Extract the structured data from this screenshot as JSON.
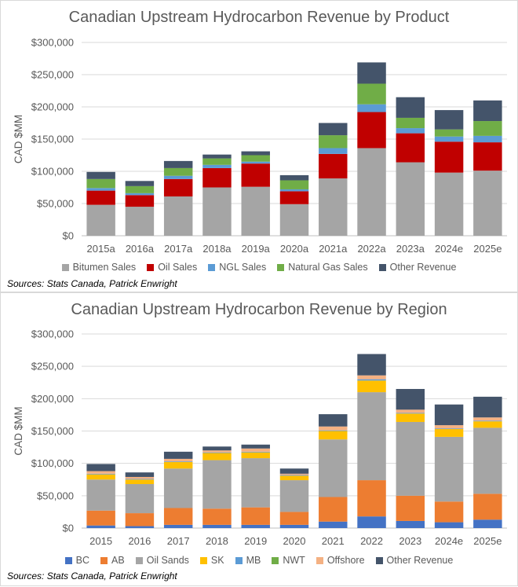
{
  "chart_data": [
    {
      "type": "bar",
      "stacked": true,
      "title": "Canadian Upstream Hydrocarbon Revenue by Product",
      "ylabel": "CAD $MM",
      "xlabel": "",
      "ylim": [
        0,
        300000
      ],
      "yticks": [
        "$0",
        "$50,000",
        "$100,000",
        "$150,000",
        "$200,000",
        "$250,000",
        "$300,000"
      ],
      "ytick_values": [
        0,
        50000,
        100000,
        150000,
        200000,
        250000,
        300000
      ],
      "categories": [
        "2015a",
        "2016a",
        "2017a",
        "2018a",
        "2019a",
        "2020a",
        "2021a",
        "2022a",
        "2023a",
        "2024e",
        "2025e"
      ],
      "series": [
        {
          "name": "Bitumen Sales",
          "color": "#a5a5a5",
          "values": [
            48000,
            45000,
            61000,
            75000,
            76000,
            49000,
            89000,
            136000,
            114000,
            98000,
            101000
          ]
        },
        {
          "name": "Oil Sales",
          "color": "#c00000",
          "values": [
            22000,
            18000,
            27000,
            30000,
            36000,
            20000,
            38000,
            56000,
            45000,
            48000,
            44000
          ]
        },
        {
          "name": "NGL Sales",
          "color": "#5b9bd5",
          "values": [
            4000,
            3000,
            5000,
            5000,
            3000,
            3000,
            9000,
            12000,
            8000,
            8000,
            10000
          ]
        },
        {
          "name": "Natural Gas Sales",
          "color": "#70ad47",
          "values": [
            14000,
            11000,
            12000,
            10000,
            10000,
            14000,
            20000,
            32000,
            16000,
            11000,
            23000
          ]
        },
        {
          "name": "Other Revenue",
          "color": "#44546a",
          "values": [
            11000,
            8000,
            11000,
            6000,
            6000,
            8000,
            19000,
            33000,
            32000,
            30000,
            32000
          ]
        }
      ],
      "source": "Sources: Stats Canada, Patrick Enwright"
    },
    {
      "type": "bar",
      "stacked": true,
      "title": "Canadian Upstream Hydrocarbon Revenue by Region",
      "ylabel": "CAD $MM",
      "xlabel": "",
      "ylim": [
        0,
        300000
      ],
      "yticks": [
        "$0",
        "$50,000",
        "$100,000",
        "$150,000",
        "$200,000",
        "$250,000",
        "$300,000"
      ],
      "ytick_values": [
        0,
        50000,
        100000,
        150000,
        200000,
        250000,
        300000
      ],
      "categories": [
        "2015",
        "2016",
        "2017",
        "2018",
        "2019",
        "2020",
        "2021",
        "2022",
        "2023",
        "2024e",
        "2025e"
      ],
      "series": [
        {
          "name": "BC",
          "color": "#4472c4",
          "values": [
            4000,
            3000,
            5000,
            5000,
            5000,
            5000,
            10000,
            18000,
            11000,
            9000,
            13000
          ]
        },
        {
          "name": "AB",
          "color": "#ed7d31",
          "values": [
            23000,
            20000,
            26000,
            25000,
            27000,
            20000,
            38000,
            56000,
            39000,
            32000,
            40000
          ]
        },
        {
          "name": "Oil Sands",
          "color": "#a5a5a5",
          "values": [
            48000,
            45000,
            61000,
            75000,
            76000,
            49000,
            89000,
            136000,
            114000,
            100000,
            102000
          ]
        },
        {
          "name": "SK",
          "color": "#ffc000",
          "values": [
            8000,
            7000,
            10000,
            11000,
            9000,
            7000,
            13000,
            18000,
            13000,
            12000,
            10000
          ]
        },
        {
          "name": "MB",
          "color": "#5b9bd5",
          "values": [
            1000,
            1000,
            1000,
            1000,
            1000,
            1000,
            1000,
            2000,
            1000,
            1000,
            1000
          ]
        },
        {
          "name": "NWT",
          "color": "#70ad47",
          "values": [
            0,
            0,
            0,
            0,
            0,
            0,
            0,
            0,
            0,
            0,
            0
          ]
        },
        {
          "name": "Offshore",
          "color": "#f4b183",
          "values": [
            4000,
            3000,
            4000,
            3000,
            5000,
            2000,
            6000,
            6000,
            5000,
            5000,
            5000
          ]
        },
        {
          "name": "Other Revenue",
          "color": "#44546a",
          "values": [
            11000,
            7000,
            11000,
            6000,
            6000,
            8000,
            19000,
            33000,
            32000,
            32000,
            32000
          ]
        }
      ],
      "source": "Sources: Stats Canada, Patrick Enwright"
    }
  ]
}
